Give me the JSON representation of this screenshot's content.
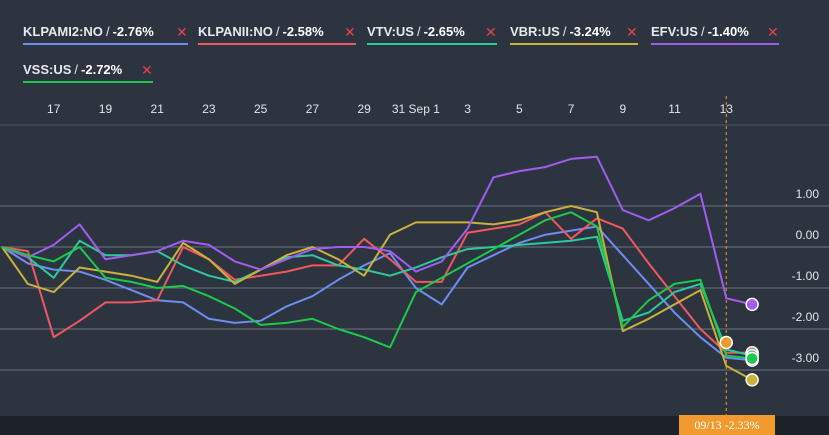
{
  "legend": [
    {
      "name": "KLPAMI2:NO",
      "value": "-2.76%",
      "color": "#6f8df0",
      "remove": "✕"
    },
    {
      "name": "KLPANII:NO",
      "value": "-2.58%",
      "color": "#f0585e",
      "remove": "✕"
    },
    {
      "name": "VTV:US",
      "value": "-2.65%",
      "color": "#2fc89a",
      "remove": "✕"
    },
    {
      "name": "VBR:US",
      "value": "-3.24%",
      "color": "#c9b13c",
      "remove": "✕"
    },
    {
      "name": "EFV:US",
      "value": "-1.40%",
      "color": "#a35cf0",
      "remove": "✕"
    },
    {
      "name": "VSS:US",
      "value": "-2.72%",
      "color": "#1ec94a",
      "remove": "✕"
    }
  ],
  "cursor": {
    "date": "09/13",
    "value": "-2.33%"
  },
  "chart_data": {
    "type": "line",
    "x_tick_labels": [
      "17",
      "19",
      "21",
      "23",
      "25",
      "27",
      "29",
      "31 Sep 1",
      "3",
      "5",
      "7",
      "9",
      "11",
      "13"
    ],
    "x_tick_index": [
      1,
      3,
      5,
      7,
      9,
      11,
      13,
      15,
      17,
      19,
      21,
      23,
      25,
      27
    ],
    "y_ticks": [
      1.0,
      0.0,
      -1.0,
      -2.0,
      -3.0
    ],
    "y_tick_labels": [
      "1.00",
      "0.00",
      "-1.00",
      "-2.00",
      "-3.00"
    ],
    "ylim": [
      -3.8,
      2.6
    ],
    "xlim": [
      -1,
      29
    ],
    "series": [
      {
        "name": "KLPAMI2:NO",
        "color": "#6f8df0",
        "end_marker": true,
        "points": [
          [
            -1,
            0
          ],
          [
            0,
            -0.4
          ],
          [
            1,
            -0.55
          ],
          [
            2,
            -0.6
          ],
          [
            3,
            -0.8
          ],
          [
            4,
            -1.05
          ],
          [
            5,
            -1.3
          ],
          [
            6,
            -1.35
          ],
          [
            7,
            -1.75
          ],
          [
            8,
            -1.85
          ],
          [
            9,
            -1.8
          ],
          [
            10,
            -1.45
          ],
          [
            11,
            -1.2
          ],
          [
            12,
            -0.8
          ],
          [
            13,
            -0.45
          ],
          [
            14,
            -0.15
          ],
          [
            15,
            -1.0
          ],
          [
            16,
            -1.4
          ],
          [
            17,
            -0.5
          ],
          [
            18,
            -0.2
          ],
          [
            19,
            0.1
          ],
          [
            20,
            0.3
          ],
          [
            21,
            0.4
          ],
          [
            22,
            0.5
          ],
          [
            23,
            -0.2
          ],
          [
            24,
            -0.9
          ],
          [
            25,
            -1.6
          ],
          [
            26,
            -2.2
          ],
          [
            27,
            -2.7
          ],
          [
            28,
            -2.76
          ]
        ]
      },
      {
        "name": "KLPANII:NO",
        "color": "#f0585e",
        "end_marker": true,
        "points": [
          [
            -1,
            0
          ],
          [
            0,
            -0.1
          ],
          [
            1,
            -2.2
          ],
          [
            2,
            -1.8
          ],
          [
            3,
            -1.35
          ],
          [
            4,
            -1.35
          ],
          [
            5,
            -1.3
          ],
          [
            6,
            0.0
          ],
          [
            7,
            -0.3
          ],
          [
            8,
            -0.8
          ],
          [
            9,
            -0.7
          ],
          [
            10,
            -0.6
          ],
          [
            11,
            -0.45
          ],
          [
            12,
            -0.45
          ],
          [
            13,
            0.2
          ],
          [
            14,
            -0.3
          ],
          [
            15,
            -0.85
          ],
          [
            16,
            -0.85
          ],
          [
            17,
            0.35
          ],
          [
            18,
            0.45
          ],
          [
            19,
            0.55
          ],
          [
            20,
            0.85
          ],
          [
            21,
            0.2
          ],
          [
            22,
            0.7
          ],
          [
            23,
            0.45
          ],
          [
            24,
            -0.4
          ],
          [
            25,
            -1.2
          ],
          [
            26,
            -2.0
          ],
          [
            27,
            -2.58
          ],
          [
            28,
            -2.58
          ]
        ]
      },
      {
        "name": "VTV:US",
        "color": "#2fc89a",
        "end_marker": true,
        "points": [
          [
            -1,
            0
          ],
          [
            0,
            -0.25
          ],
          [
            1,
            -0.75
          ],
          [
            2,
            0.15
          ],
          [
            3,
            -0.2
          ],
          [
            4,
            -0.2
          ],
          [
            5,
            -0.1
          ],
          [
            6,
            -0.45
          ],
          [
            7,
            -0.7
          ],
          [
            8,
            -0.85
          ],
          [
            9,
            -0.55
          ],
          [
            10,
            -0.25
          ],
          [
            11,
            -0.2
          ],
          [
            12,
            -0.45
          ],
          [
            13,
            -0.55
          ],
          [
            14,
            -0.7
          ],
          [
            15,
            -0.5
          ],
          [
            16,
            -0.25
          ],
          [
            17,
            -0.05
          ],
          [
            18,
            0.0
          ],
          [
            19,
            0.05
          ],
          [
            20,
            0.1
          ],
          [
            21,
            0.15
          ],
          [
            22,
            0.25
          ],
          [
            23,
            -1.8
          ],
          [
            24,
            -1.6
          ],
          [
            25,
            -1.1
          ],
          [
            26,
            -0.9
          ],
          [
            27,
            -2.5
          ],
          [
            28,
            -2.65
          ]
        ]
      },
      {
        "name": "VBR:US",
        "color": "#c9b13c",
        "end_marker": true,
        "points": [
          [
            -1,
            0
          ],
          [
            0,
            -0.9
          ],
          [
            1,
            -1.1
          ],
          [
            2,
            -0.5
          ],
          [
            3,
            -0.6
          ],
          [
            4,
            -0.7
          ],
          [
            5,
            -0.85
          ],
          [
            6,
            0.1
          ],
          [
            7,
            -0.3
          ],
          [
            8,
            -0.9
          ],
          [
            9,
            -0.55
          ],
          [
            10,
            -0.2
          ],
          [
            11,
            0.0
          ],
          [
            12,
            -0.3
          ],
          [
            13,
            -0.7
          ],
          [
            14,
            0.3
          ],
          [
            15,
            0.6
          ],
          [
            16,
            0.6
          ],
          [
            17,
            0.6
          ],
          [
            18,
            0.55
          ],
          [
            19,
            0.65
          ],
          [
            20,
            0.85
          ],
          [
            21,
            1.0
          ],
          [
            22,
            0.85
          ],
          [
            23,
            -2.05
          ],
          [
            24,
            -1.75
          ],
          [
            25,
            -1.4
          ],
          [
            26,
            -1.05
          ],
          [
            27,
            -2.9
          ],
          [
            28,
            -3.24
          ]
        ]
      },
      {
        "name": "EFV:US",
        "color": "#a35cf0",
        "end_marker": true,
        "points": [
          [
            -1,
            0
          ],
          [
            0,
            -0.25
          ],
          [
            1,
            0.05
          ],
          [
            2,
            0.55
          ],
          [
            3,
            -0.3
          ],
          [
            4,
            -0.2
          ],
          [
            5,
            -0.1
          ],
          [
            6,
            0.15
          ],
          [
            7,
            0.05
          ],
          [
            8,
            -0.35
          ],
          [
            9,
            -0.55
          ],
          [
            10,
            -0.3
          ],
          [
            11,
            -0.05
          ],
          [
            12,
            0.0
          ],
          [
            13,
            0.0
          ],
          [
            14,
            -0.1
          ],
          [
            15,
            -0.6
          ],
          [
            16,
            -0.35
          ],
          [
            17,
            0.45
          ],
          [
            18,
            1.7
          ],
          [
            19,
            1.85
          ],
          [
            20,
            1.95
          ],
          [
            21,
            2.15
          ],
          [
            22,
            2.2
          ],
          [
            23,
            0.9
          ],
          [
            24,
            0.65
          ],
          [
            25,
            0.95
          ],
          [
            26,
            1.3
          ],
          [
            27,
            -1.25
          ],
          [
            28,
            -1.4
          ]
        ]
      },
      {
        "name": "VSS:US",
        "color": "#1ec94a",
        "end_marker": true,
        "points": [
          [
            -1,
            0
          ],
          [
            0,
            -0.2
          ],
          [
            1,
            -0.35
          ],
          [
            2,
            0.0
          ],
          [
            3,
            -0.75
          ],
          [
            4,
            -0.85
          ],
          [
            5,
            -1.0
          ],
          [
            6,
            -0.95
          ],
          [
            7,
            -1.2
          ],
          [
            8,
            -1.5
          ],
          [
            9,
            -1.9
          ],
          [
            10,
            -1.85
          ],
          [
            11,
            -1.75
          ],
          [
            12,
            -2.0
          ],
          [
            13,
            -2.2
          ],
          [
            14,
            -2.45
          ],
          [
            15,
            -1.1
          ],
          [
            16,
            -0.75
          ],
          [
            17,
            -0.4
          ],
          [
            18,
            -0.05
          ],
          [
            19,
            0.3
          ],
          [
            20,
            0.65
          ],
          [
            21,
            0.85
          ],
          [
            22,
            0.5
          ],
          [
            23,
            -1.95
          ],
          [
            24,
            -1.3
          ],
          [
            25,
            -0.9
          ],
          [
            26,
            -0.8
          ],
          [
            27,
            -2.65
          ],
          [
            28,
            -2.72
          ]
        ]
      }
    ],
    "cursor_x": 27
  }
}
